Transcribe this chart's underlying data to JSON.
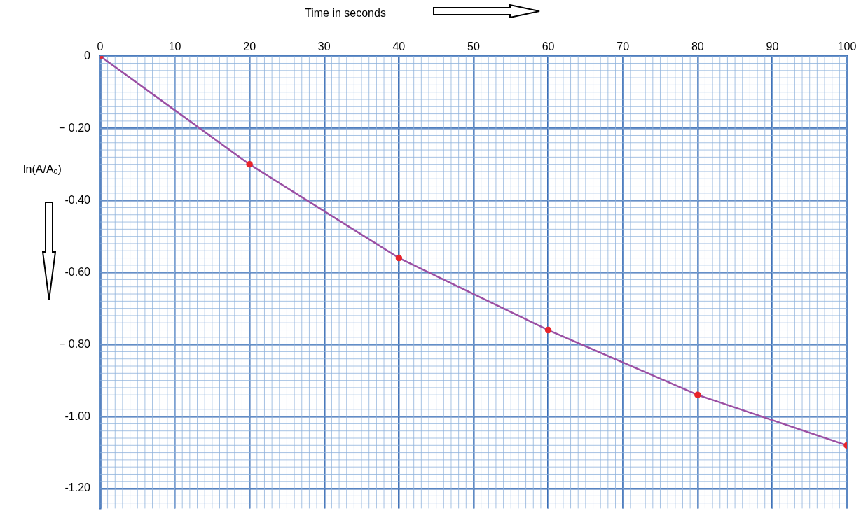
{
  "chart_data": {
    "type": "line",
    "xlabel": "Time in seconds",
    "ylabel": "ln(A/Aₒ)",
    "x": [
      0,
      20,
      40,
      60,
      80,
      100
    ],
    "series": [
      {
        "color": "#9b4fa3",
        "colors": [
          "#e8252b",
          "#e8252b",
          "#e8252b",
          "#e8252b",
          "#e8252b",
          "#e8252b"
        ],
        "values": [
          0,
          -0.3,
          -0.56,
          -0.76,
          -0.94,
          -1.08
        ]
      }
    ],
    "xlim": [
      0,
      100
    ],
    "xticks": [
      0,
      10,
      20,
      30,
      40,
      50,
      60,
      70,
      80,
      90,
      100
    ],
    "ylim": [
      -1.255,
      0
    ],
    "yticks": [
      0,
      {
        "value": -0.2,
        "label": "− 0.20"
      },
      {
        "value": -0.4,
        "label": "-0.40"
      },
      {
        "value": -0.6,
        "label": "-0.60"
      },
      {
        "value": -0.8,
        "label": "− 0.80"
      },
      {
        "value": -1.0,
        "label": "-1.00"
      },
      {
        "value": -1.2,
        "label": "-1.20"
      }
    ],
    "grid": true,
    "legend": false,
    "marker": "circle",
    "line_style": "solid"
  }
}
